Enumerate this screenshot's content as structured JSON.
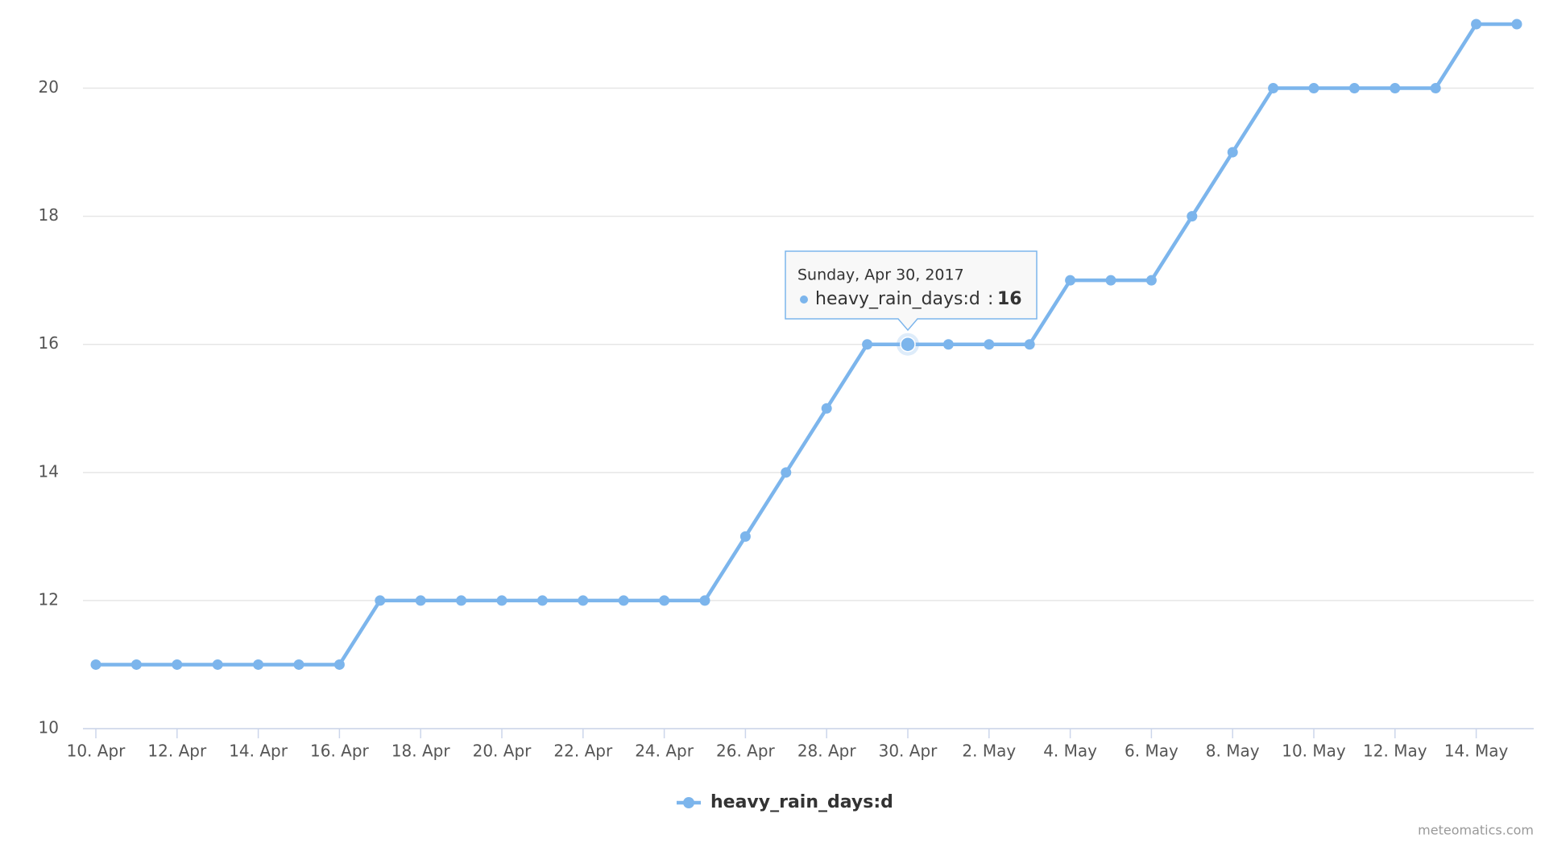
{
  "chart_data": {
    "type": "line",
    "categories": [
      "10. Apr",
      null,
      "12. Apr",
      null,
      "14. Apr",
      null,
      "16. Apr",
      null,
      "18. Apr",
      null,
      "20. Apr",
      null,
      "22. Apr",
      null,
      "24. Apr",
      null,
      "26. Apr",
      null,
      "28. Apr",
      null,
      "30. Apr",
      null,
      "2. May",
      null,
      "4. May",
      null,
      "6. May",
      null,
      "8. May",
      null,
      "10. May",
      null,
      "12. May",
      null,
      "14. May",
      null
    ],
    "series": [
      {
        "name": "heavy_rain_days:d",
        "color": "#7cb5ec",
        "values": [
          11,
          11,
          11,
          11,
          11,
          11,
          11,
          12,
          12,
          12,
          12,
          12,
          12,
          12,
          12,
          12,
          13,
          14,
          15,
          16,
          16,
          16,
          16,
          16,
          17,
          17,
          17,
          18,
          19,
          20,
          20,
          20,
          20,
          20,
          21,
          21
        ]
      }
    ],
    "ylim": [
      10,
      21
    ],
    "yticks": [
      10,
      12,
      14,
      16,
      18,
      20
    ],
    "grid": true,
    "tooltip_title": "Sunday, Apr 30, 2017",
    "credit": "meteomatics.com"
  }
}
